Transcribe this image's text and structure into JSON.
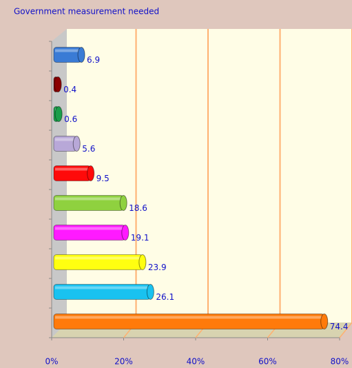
{
  "chart_data": {
    "type": "bar",
    "orientation": "horizontal",
    "title": "Government measurement needed",
    "categories": [
      null,
      null,
      null,
      null,
      null,
      null,
      null,
      null,
      null,
      null
    ],
    "values": [
      6.9,
      0.4,
      0.6,
      5.6,
      9.5,
      18.6,
      19.1,
      23.9,
      26.1,
      74.4
    ],
    "colors": [
      "#3a7bd5",
      "#8b0000",
      "#1a9e4a",
      "#b8a8d8",
      "#ff0a0a",
      "#8fd13f",
      "#ff1aff",
      "#ffff10",
      "#19c2f0",
      "#ff7a0a"
    ],
    "xlim": [
      0,
      80
    ],
    "xticks": [
      {
        "value": 0,
        "label": "0%"
      },
      {
        "value": 20,
        "label": "20%"
      },
      {
        "value": 40,
        "label": "40%"
      },
      {
        "value": 60,
        "label": "60%"
      },
      {
        "value": 80,
        "label": "80%"
      }
    ],
    "grid": true
  }
}
